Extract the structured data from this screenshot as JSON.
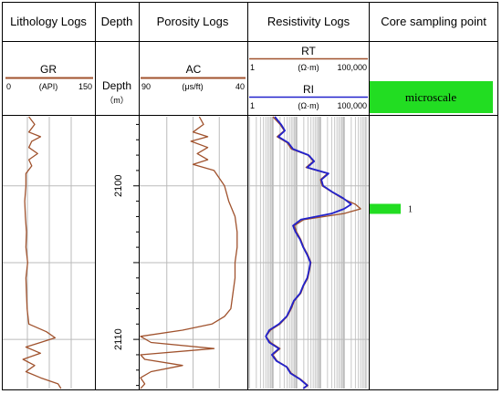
{
  "columns": {
    "lithology": "Lithology Logs",
    "depth": "Depth",
    "porosity": "Porosity Logs",
    "resistivity": "Resistivity Logs",
    "core": "Core sampling point"
  },
  "tracks": {
    "gr": {
      "name": "GR",
      "min": "0",
      "unit": "(API)",
      "max": "150",
      "color": "#a0522d"
    },
    "depth": {
      "name": "Depth",
      "unit": "（m）"
    },
    "ac": {
      "name": "AC",
      "min": "90",
      "unit": "(μs/ft)",
      "max": "40",
      "color": "#a0522d"
    },
    "rt": {
      "name": "RT",
      "min": "1",
      "unit": "(Ω·m)",
      "max": "100,000",
      "color": "#a0522d"
    },
    "ri": {
      "name": "RI",
      "min": "1",
      "unit": "(Ω·m)",
      "max": "100,000",
      "color": "#2222cc"
    }
  },
  "core": {
    "label": "microscale",
    "sample_number": "1",
    "sample_depth": 2101.5,
    "color": "#22dd22"
  },
  "chart_data": {
    "type": "line",
    "depth_ticks": [
      2100,
      2110
    ],
    "ylim": [
      2095.5,
      2113.2
    ],
    "series": [
      {
        "name": "GR",
        "xlim": [
          0,
          150
        ],
        "depth": [
          2095.5,
          2096.0,
          2096.5,
          2096.8,
          2097.1,
          2097.5,
          2097.9,
          2098.3,
          2098.7,
          2099.2,
          2100.0,
          2101.0,
          2102.0,
          2103.0,
          2104.0,
          2105.0,
          2106.0,
          2107.0,
          2108.0,
          2109.0,
          2109.5,
          2109.9,
          2110.2,
          2110.5,
          2110.9,
          2111.3,
          2111.7,
          2112.1,
          2112.5,
          2112.9,
          2113.2
        ],
        "values": [
          40,
          50,
          40,
          60,
          45,
          40,
          55,
          40,
          45,
          35,
          35,
          33,
          34,
          36,
          35,
          38,
          35,
          36,
          37,
          40,
          70,
          85,
          60,
          35,
          60,
          30,
          50,
          35,
          60,
          90,
          95
        ]
      },
      {
        "name": "AC",
        "xlim": [
          90,
          40
        ],
        "depth": [
          2095.5,
          2096.0,
          2096.5,
          2096.8,
          2097.1,
          2097.5,
          2097.9,
          2098.3,
          2098.6,
          2099.0,
          2100.0,
          2101.0,
          2102.0,
          2103.0,
          2104.0,
          2105.0,
          2106.0,
          2107.0,
          2108.0,
          2108.5,
          2109.0,
          2109.4,
          2109.8,
          2110.2,
          2110.6,
          2111.0,
          2111.3,
          2111.7,
          2112.1,
          2112.5,
          2112.9,
          2113.2
        ],
        "values": [
          62,
          60,
          65,
          58,
          66,
          58,
          63,
          58,
          65,
          55,
          50,
          48,
          45,
          44,
          44,
          45,
          45,
          46,
          47,
          50,
          56,
          70,
          90,
          85,
          55,
          90,
          88,
          70,
          85,
          90,
          88,
          90
        ]
      },
      {
        "name": "RT",
        "xlim": [
          1,
          100000
        ],
        "log_x": true,
        "depth": [
          2095.5,
          2096.0,
          2096.4,
          2096.8,
          2097.2,
          2097.6,
          2098.0,
          2098.4,
          2098.8,
          2099.2,
          2099.6,
          2100.0,
          2100.4,
          2100.8,
          2101.2,
          2101.5,
          2101.8,
          2102.2,
          2102.6,
          2103.0,
          2103.5,
          2104.0,
          2104.5,
          2105.0,
          2105.5,
          2106.0,
          2106.5,
          2107.0,
          2107.5,
          2108.0,
          2108.5,
          2109.0,
          2109.4,
          2109.8,
          2110.2,
          2110.6,
          2111.0,
          2111.4,
          2111.8,
          2112.2,
          2112.6,
          2113.0,
          2113.2
        ],
        "values": [
          10,
          20,
          30,
          15,
          40,
          60,
          300,
          500,
          250,
          2000,
          1000,
          1200,
          3000,
          8000,
          30000,
          50000,
          10000,
          200,
          80,
          100,
          150,
          200,
          300,
          400,
          350,
          300,
          200,
          150,
          80,
          60,
          40,
          20,
          8,
          5,
          8,
          20,
          10,
          15,
          40,
          60,
          150,
          300,
          200
        ]
      },
      {
        "name": "RI",
        "xlim": [
          1,
          100000
        ],
        "log_x": true,
        "depth": [
          2095.5,
          2096.0,
          2096.4,
          2096.8,
          2097.2,
          2097.6,
          2098.0,
          2098.4,
          2098.8,
          2099.2,
          2099.6,
          2100.0,
          2100.4,
          2100.8,
          2101.2,
          2101.5,
          2101.8,
          2102.2,
          2102.6,
          2103.0,
          2103.5,
          2104.0,
          2104.5,
          2105.0,
          2105.5,
          2106.0,
          2106.5,
          2107.0,
          2107.5,
          2108.0,
          2108.5,
          2109.0,
          2109.4,
          2109.8,
          2110.2,
          2110.6,
          2111.0,
          2111.4,
          2111.8,
          2112.2,
          2112.6,
          2113.0,
          2113.2
        ],
        "values": [
          12,
          22,
          32,
          17,
          45,
          70,
          320,
          550,
          280,
          2200,
          1100,
          1300,
          3200,
          9000,
          20000,
          10000,
          3000,
          150,
          70,
          90,
          140,
          190,
          280,
          380,
          330,
          280,
          190,
          140,
          75,
          55,
          38,
          18,
          7,
          5,
          7,
          18,
          9,
          14,
          38,
          55,
          140,
          280,
          190
        ]
      }
    ]
  }
}
